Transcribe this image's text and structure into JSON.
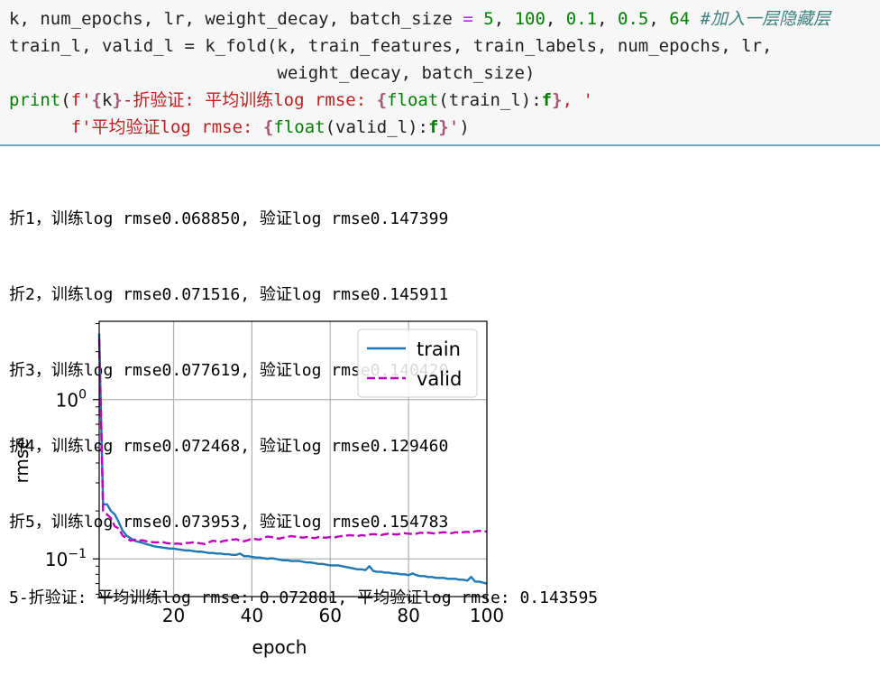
{
  "code": {
    "line1": {
      "parts": [
        "k, num_epochs, lr, weight_decay, batch_size ",
        "=",
        " ",
        "5",
        ", ",
        "100",
        ", ",
        "0.1",
        ", ",
        "0.5",
        ", ",
        "64",
        " ",
        "#加入一层隐藏层"
      ]
    },
    "line2": {
      "text": "train_l, valid_l = k_fold(k, train_features, train_labels, num_epochs, lr,"
    },
    "line3": {
      "text": "                          weight_decay, batch_size)"
    },
    "line4": {
      "parts": [
        "print",
        "(",
        "f'",
        "{",
        "k",
        "}",
        "-折验证: 平均训练log rmse: ",
        "{",
        "float",
        "(train_l):",
        "f",
        "}",
        ", '"
      ]
    },
    "line5": {
      "parts": [
        "      ",
        "f'平均验证log rmse: ",
        "{",
        "float",
        "(valid_l):",
        "f",
        "}",
        "'",
        ")"
      ]
    }
  },
  "output": {
    "lines": [
      "折1，训练log rmse0.068850, 验证log rmse0.147399",
      "折2，训练log rmse0.071516, 验证log rmse0.145911",
      "折3，训练log rmse0.077619, 验证log rmse0.140420",
      "折4，训练log rmse0.072468, 验证log rmse0.129460",
      "折5，训练log rmse0.073953, 验证log rmse0.154783",
      "5-折验证: 平均训练log rmse: 0.072881, 平均验证log rmse: 0.143595"
    ]
  },
  "chart_data": {
    "type": "line",
    "xlabel": "epoch",
    "ylabel": "rmse",
    "yscale": "log",
    "xlim": [
      1,
      100
    ],
    "ylim": [
      0.058,
      3.1
    ],
    "xticks": [
      20,
      40,
      60,
      80,
      100
    ],
    "xtick_labels": [
      "20",
      "40",
      "60",
      "80",
      "100"
    ],
    "yticks": [
      {
        "value": 1,
        "base": "10",
        "exp": "0"
      },
      {
        "value": 0.1,
        "base": "10",
        "exp": "−1"
      }
    ],
    "grid": true,
    "legend_position": "upper-right",
    "series": [
      {
        "name": "train",
        "color": "#1f77b4",
        "style": "solid",
        "x": [
          1,
          2,
          3,
          4,
          5,
          6,
          7,
          8,
          9,
          10,
          11,
          12,
          13,
          14,
          15,
          16,
          17,
          18,
          19,
          20,
          21,
          22,
          23,
          24,
          25,
          26,
          27,
          28,
          29,
          30,
          31,
          32,
          33,
          34,
          35,
          36,
          37,
          38,
          39,
          40,
          41,
          42,
          43,
          44,
          45,
          46,
          47,
          48,
          49,
          50,
          51,
          52,
          53,
          54,
          55,
          56,
          57,
          58,
          59,
          60,
          61,
          62,
          63,
          64,
          65,
          66,
          67,
          68,
          69,
          70,
          71,
          72,
          73,
          74,
          75,
          76,
          77,
          78,
          79,
          80,
          81,
          82,
          83,
          84,
          85,
          86,
          87,
          88,
          89,
          90,
          91,
          92,
          93,
          94,
          95,
          96,
          97,
          98,
          99,
          100
        ],
        "y": [
          2.6,
          0.22,
          0.22,
          0.2,
          0.19,
          0.17,
          0.15,
          0.14,
          0.135,
          0.13,
          0.128,
          0.126,
          0.124,
          0.122,
          0.12,
          0.119,
          0.118,
          0.117,
          0.116,
          0.116,
          0.115,
          0.114,
          0.113,
          0.113,
          0.112,
          0.111,
          0.111,
          0.11,
          0.109,
          0.109,
          0.108,
          0.108,
          0.107,
          0.107,
          0.106,
          0.106,
          0.108,
          0.104,
          0.104,
          0.103,
          0.102,
          0.102,
          0.101,
          0.1,
          0.101,
          0.1,
          0.099,
          0.098,
          0.098,
          0.097,
          0.097,
          0.097,
          0.096,
          0.095,
          0.095,
          0.094,
          0.093,
          0.093,
          0.092,
          0.091,
          0.091,
          0.091,
          0.09,
          0.089,
          0.088,
          0.087,
          0.086,
          0.086,
          0.085,
          0.09,
          0.084,
          0.083,
          0.083,
          0.082,
          0.082,
          0.081,
          0.081,
          0.08,
          0.08,
          0.079,
          0.081,
          0.079,
          0.078,
          0.078,
          0.077,
          0.077,
          0.076,
          0.076,
          0.076,
          0.075,
          0.075,
          0.075,
          0.074,
          0.074,
          0.073,
          0.077,
          0.072,
          0.072,
          0.071,
          0.07
        ]
      },
      {
        "name": "valid",
        "color": "#bf00bf",
        "style": "dashed",
        "x": [
          1,
          2,
          3,
          4,
          5,
          6,
          7,
          8,
          9,
          10,
          11,
          12,
          13,
          14,
          15,
          16,
          17,
          18,
          19,
          20,
          21,
          22,
          23,
          24,
          25,
          26,
          27,
          28,
          29,
          30,
          31,
          32,
          33,
          34,
          35,
          36,
          37,
          38,
          39,
          40,
          41,
          42,
          43,
          44,
          45,
          46,
          47,
          48,
          49,
          50,
          51,
          52,
          53,
          54,
          55,
          56,
          57,
          58,
          59,
          60,
          61,
          62,
          63,
          64,
          65,
          66,
          67,
          68,
          69,
          70,
          71,
          72,
          73,
          74,
          75,
          76,
          77,
          78,
          79,
          80,
          81,
          82,
          83,
          84,
          85,
          86,
          87,
          88,
          89,
          90,
          91,
          92,
          93,
          94,
          95,
          96,
          97,
          98,
          99,
          100
        ],
        "y": [
          2.4,
          0.2,
          0.19,
          0.18,
          0.16,
          0.155,
          0.14,
          0.135,
          0.13,
          0.132,
          0.13,
          0.131,
          0.129,
          0.128,
          0.127,
          0.127,
          0.128,
          0.126,
          0.125,
          0.124,
          0.125,
          0.124,
          0.126,
          0.126,
          0.127,
          0.126,
          0.125,
          0.124,
          0.127,
          0.13,
          0.129,
          0.128,
          0.13,
          0.131,
          0.132,
          0.133,
          0.13,
          0.129,
          0.131,
          0.134,
          0.133,
          0.132,
          0.136,
          0.138,
          0.137,
          0.135,
          0.134,
          0.136,
          0.137,
          0.139,
          0.138,
          0.137,
          0.136,
          0.137,
          0.136,
          0.135,
          0.137,
          0.136,
          0.136,
          0.137,
          0.136,
          0.138,
          0.139,
          0.14,
          0.141,
          0.14,
          0.139,
          0.141,
          0.14,
          0.142,
          0.143,
          0.142,
          0.141,
          0.143,
          0.144,
          0.143,
          0.142,
          0.144,
          0.145,
          0.144,
          0.143,
          0.144,
          0.146,
          0.145,
          0.146,
          0.145,
          0.144,
          0.146,
          0.147,
          0.146,
          0.145,
          0.147,
          0.146,
          0.147,
          0.148,
          0.146,
          0.149,
          0.15,
          0.148,
          0.149
        ]
      }
    ]
  }
}
